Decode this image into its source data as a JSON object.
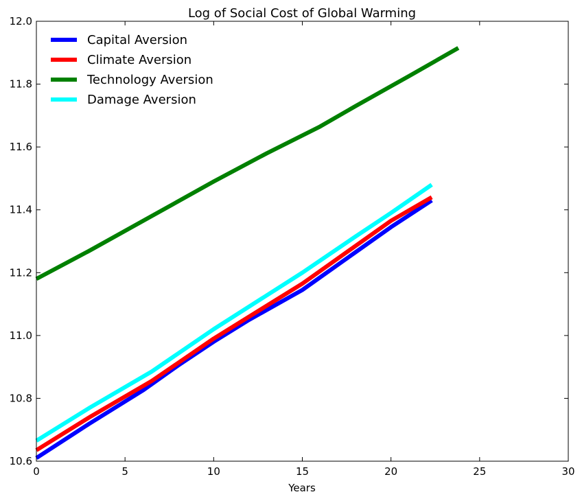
{
  "chart_data": {
    "type": "line",
    "title": "Log of Social Cost of Global Warming",
    "xlabel": "Years",
    "ylabel": "",
    "xlim": [
      0,
      30
    ],
    "ylim": [
      10.6,
      12.0
    ],
    "xticks": [
      "0",
      "5",
      "10",
      "15",
      "20",
      "25",
      "30"
    ],
    "yticks": [
      "10.6",
      "10.8",
      "11.0",
      "11.2",
      "11.4",
      "11.6",
      "11.8",
      "12.0"
    ],
    "grid": false,
    "legend_position": "top-left",
    "series": [
      {
        "name": "Capital Aversion",
        "color": "#0000ff",
        "x": [
          0,
          3,
          6,
          8,
          10,
          12,
          15,
          18,
          20,
          22.3
        ],
        "y": [
          10.61,
          10.72,
          10.825,
          10.905,
          10.98,
          11.05,
          11.145,
          11.265,
          11.345,
          11.43
        ]
      },
      {
        "name": "Climate Aversion",
        "color": "#ff0000",
        "x": [
          0,
          3,
          6.5,
          10,
          15,
          20,
          22.3
        ],
        "y": [
          10.635,
          10.74,
          10.855,
          10.99,
          11.165,
          11.365,
          11.44
        ]
      },
      {
        "name": "Technology Aversion",
        "color": "#008000",
        "x": [
          0,
          3,
          6.5,
          10,
          13,
          16,
          18,
          21,
          23.8
        ],
        "y": [
          11.18,
          11.27,
          11.38,
          11.49,
          11.58,
          11.665,
          11.73,
          11.825,
          11.915
        ]
      },
      {
        "name": "Damage Aversion",
        "color": "#00ffff",
        "x": [
          0,
          3,
          6.5,
          10,
          15,
          18,
          20,
          22.3
        ],
        "y": [
          10.665,
          10.77,
          10.885,
          11.02,
          11.2,
          11.315,
          11.39,
          11.48
        ]
      }
    ]
  }
}
